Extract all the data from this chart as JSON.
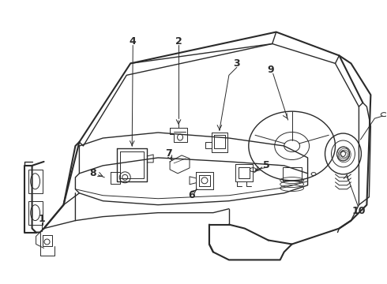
{
  "background_color": "#ffffff",
  "line_color": "#2a2a2a",
  "fig_width": 4.9,
  "fig_height": 3.6,
  "dpi": 100
}
